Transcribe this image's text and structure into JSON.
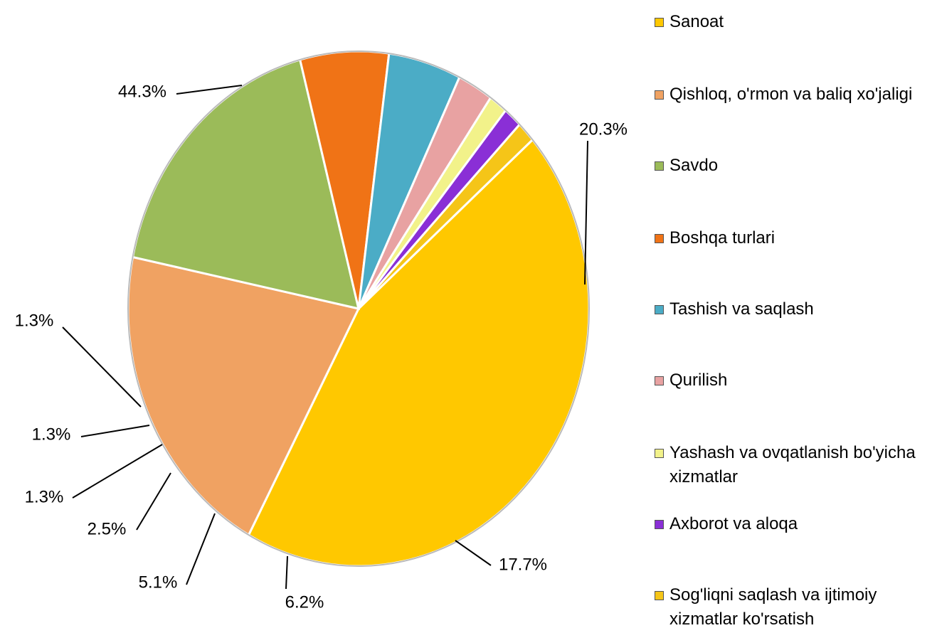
{
  "chart_data": {
    "type": "pie",
    "categories": [
      "Sanoat",
      "Qishloq, o'rmon va baliq xo'jaligi",
      "Savdo",
      "Boshqa turlari",
      "Tashish va saqlash",
      "Qurilish",
      "Yashash va ovqatlanish bo'yicha xizmatlar",
      "Axborot va aloqa",
      "Sog'liqni saqlash va ijtimoiy xizmatlar ko'rsatish"
    ],
    "values": [
      44.3,
      20.3,
      17.7,
      6.2,
      5.1,
      2.5,
      1.3,
      1.3,
      1.3
    ],
    "value_labels": [
      "44.3%",
      "20.3%",
      "17.7%",
      "6.2%",
      "5.1%",
      "2.5%",
      "1.3%",
      "1.3%",
      "1.3%"
    ],
    "colors": [
      "#FFC800",
      "#F0A262",
      "#9BBB59",
      "#F07316",
      "#4BACC6",
      "#E8A2A2",
      "#F2F28A",
      "#8A2FD6",
      "#F5C518"
    ],
    "legend": "right"
  }
}
